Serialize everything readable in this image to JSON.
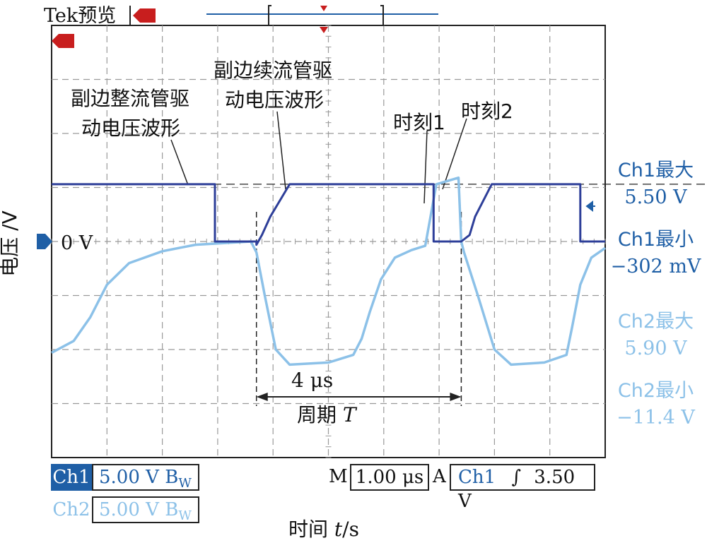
{
  "header": {
    "title": "Tek预览"
  },
  "annotations": {
    "rect_drive_line1": "副边整流管驱",
    "rect_drive_line2": "动电压波形",
    "free_drive_line1": "副边续流管驱",
    "free_drive_line2": "动电压波形",
    "moment1": "时刻1",
    "moment2": "时刻2",
    "interval": "4 μs",
    "period_prefix": "周期 ",
    "period_symbol": "T"
  },
  "axes": {
    "ylabel": "电压 /V",
    "xlabel_prefix": "时间 ",
    "xlabel_symbol": "t",
    "xlabel_suffix": "/s",
    "ground_label": "0 V"
  },
  "measurements": {
    "ch1_max_label": "Ch1最大",
    "ch1_max_value": "5.50 V",
    "ch1_min_label": "Ch1最小",
    "ch1_min_value": "−302 mV",
    "ch2_max_label": "Ch2最大",
    "ch2_max_value": "5.90 V",
    "ch2_min_label": "Ch2最小",
    "ch2_min_value": "−11.4 V"
  },
  "status_bar": {
    "ch1_label": "Ch1",
    "ch1_scale": "5.00 V",
    "ch1_bw": "B",
    "ch1_bw_sub": "W",
    "ch2_label": "Ch2",
    "ch2_scale": "5.00 V",
    "ch2_bw": "B",
    "ch2_bw_sub": "W",
    "m_label": "M",
    "timebase": "1.00 μs",
    "a_label": "A",
    "trig_source": "Ch1",
    "trig_slope": "∫",
    "trig_level": "3.50 V"
  },
  "colors": {
    "ch1": "#2e3f99",
    "ch2": "#8cc1e8",
    "accent": "#1f5fa6",
    "trigger": "#c81e1e"
  },
  "chart_data": {
    "type": "line",
    "x_unit": "μs",
    "y_unit": "V",
    "xlim": [
      -5,
      5
    ],
    "ylim": [
      -20,
      20
    ],
    "grid": true,
    "x_div": 10,
    "y_div": 8,
    "volts_per_div": 5,
    "time_per_div": 1,
    "series": [
      {
        "name": "Ch1",
        "points": [
          [
            -5,
            5.3
          ],
          [
            -2.05,
            5.3
          ],
          [
            -2.05,
            0
          ],
          [
            -1.3,
            0
          ],
          [
            -1.3,
            -0.3
          ],
          [
            -1.2,
            0.6
          ],
          [
            -1.05,
            2.3
          ],
          [
            -0.7,
            5.3
          ],
          [
            1.9,
            5.3
          ],
          [
            1.9,
            0
          ],
          [
            2.4,
            0
          ],
          [
            2.55,
            0.6
          ],
          [
            2.65,
            2.3
          ],
          [
            2.95,
            5.3
          ],
          [
            4.55,
            5.3
          ],
          [
            4.55,
            0
          ],
          [
            5,
            0
          ]
        ]
      },
      {
        "name": "Ch2",
        "points": [
          [
            -5,
            -10.3
          ],
          [
            -4.6,
            -9.2
          ],
          [
            -4.3,
            -7
          ],
          [
            -4,
            -4
          ],
          [
            -3.6,
            -2
          ],
          [
            -3,
            -0.9
          ],
          [
            -2.4,
            -0.3
          ],
          [
            -1.4,
            0
          ],
          [
            -1.3,
            -1
          ],
          [
            -1.15,
            -5
          ],
          [
            -0.95,
            -10
          ],
          [
            -0.7,
            -11.4
          ],
          [
            0,
            -11.2
          ],
          [
            0.45,
            -10.5
          ],
          [
            0.6,
            -9
          ],
          [
            0.75,
            -6.5
          ],
          [
            0.95,
            -3.5
          ],
          [
            1.2,
            -1.5
          ],
          [
            1.5,
            -0.8
          ],
          [
            1.75,
            -0.4
          ],
          [
            1.95,
            5.3
          ],
          [
            2.35,
            5.9
          ],
          [
            2.4,
            0
          ],
          [
            2.45,
            -1
          ],
          [
            2.7,
            -5
          ],
          [
            3.0,
            -10
          ],
          [
            3.3,
            -11.4
          ],
          [
            3.9,
            -11.2
          ],
          [
            4.3,
            -10.5
          ],
          [
            4.4,
            -8
          ],
          [
            4.55,
            -4
          ],
          [
            4.75,
            -1.5
          ],
          [
            5,
            -0.6
          ]
        ]
      }
    ]
  }
}
